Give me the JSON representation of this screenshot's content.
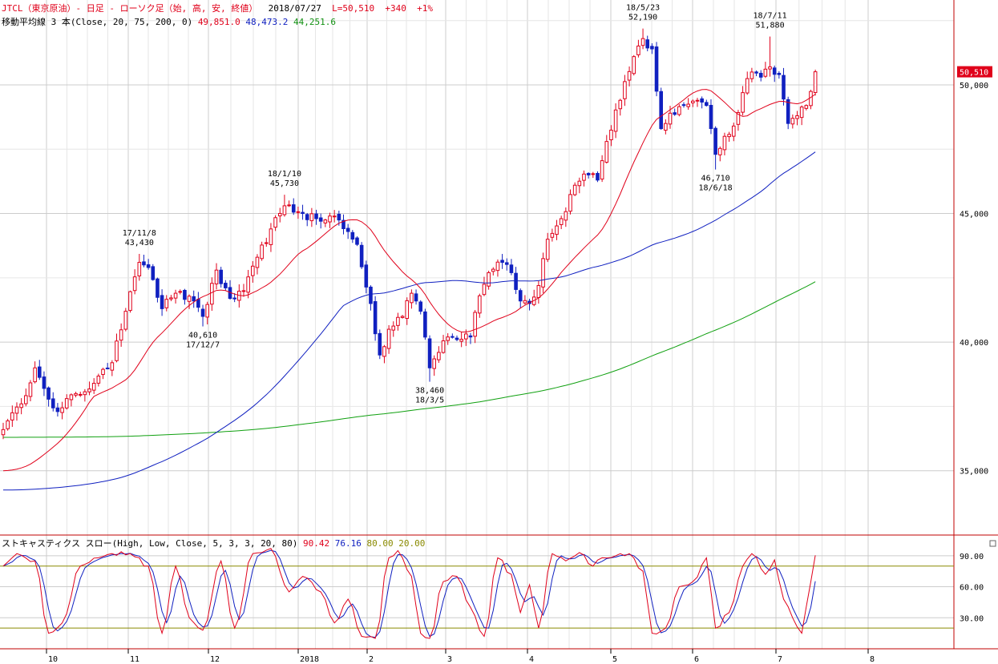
{
  "header": {
    "symbol": "JTCL（東京原油）",
    "timeframe": "- 日足 - ローソク足（始, 高, 安, 終値）",
    "date": "2018/07/27",
    "last": "L=50,510",
    "change": "+340",
    "change_pct": "+1%",
    "ma_label": "移動平均線 3 本(Close, 20, 75, 200, 0)",
    "ma20": "49,851.0",
    "ma75": "48,473.2",
    "ma200": "44,251.6",
    "stoch_label": "ストキャスティクス スロー(High, Low, Close, 5, 3, 3, 20, 80)",
    "stoch_k": "90.42",
    "stoch_d": "76.16",
    "stoch_hi": "80.00",
    "stoch_lo": "20.00"
  },
  "colors": {
    "up": "#e0001a",
    "down": "#1020c0",
    "ma20": "#e0001a",
    "ma75": "#1020c0",
    "ma200": "#10a010",
    "stoch_k": "#e0001a",
    "stoch_d": "#1020c0",
    "levels": "#8a8a00",
    "grid": "#cccccc",
    "price_tag_bg": "#e0001a"
  },
  "price_tag": "50,510",
  "chart_data": [
    {
      "type": "candlestick",
      "ylim": [
        32500,
        53300
      ],
      "y_ticks": [
        35000,
        40000,
        45000,
        50000
      ],
      "y_tick_labels": [
        "35,000",
        "40,000",
        "45,000",
        "50,000"
      ],
      "x_labels": [
        "10",
        "11",
        "12",
        "2018",
        "2",
        "3",
        "4",
        "5",
        "6",
        "7",
        "8"
      ],
      "grid": true,
      "legend": "top-left",
      "anchors": [
        {
          "d": 0,
          "v": 36600
        },
        {
          "d": 4,
          "v": 37600
        },
        {
          "d": 7,
          "v": 39000
        },
        {
          "d": 9,
          "v": 38200
        },
        {
          "d": 12,
          "v": 37300
        },
        {
          "d": 16,
          "v": 38000
        },
        {
          "d": 20,
          "v": 38400
        },
        {
          "d": 24,
          "v": 39200
        },
        {
          "d": 27,
          "v": 41200
        },
        {
          "d": 30,
          "v": 43100
        },
        {
          "d": 32,
          "v": 42900
        },
        {
          "d": 35,
          "v": 41300
        },
        {
          "d": 38,
          "v": 41900
        },
        {
          "d": 42,
          "v": 41600
        },
        {
          "d": 44,
          "v": 41000
        },
        {
          "d": 47,
          "v": 42800
        },
        {
          "d": 50,
          "v": 41700
        },
        {
          "d": 53,
          "v": 42000
        },
        {
          "d": 56,
          "v": 43300
        },
        {
          "d": 59,
          "v": 44400
        },
        {
          "d": 62,
          "v": 45300
        },
        {
          "d": 66,
          "v": 45000
        },
        {
          "d": 70,
          "v": 44700
        },
        {
          "d": 73,
          "v": 44900
        },
        {
          "d": 76,
          "v": 44300
        },
        {
          "d": 78,
          "v": 43800
        },
        {
          "d": 81,
          "v": 41500
        },
        {
          "d": 83,
          "v": 39500
        },
        {
          "d": 85,
          "v": 40500
        },
        {
          "d": 88,
          "v": 41000
        },
        {
          "d": 90,
          "v": 41900
        },
        {
          "d": 92,
          "v": 41200
        },
        {
          "d": 94,
          "v": 39000
        },
        {
          "d": 96,
          "v": 39600
        },
        {
          "d": 98,
          "v": 40200
        },
        {
          "d": 100,
          "v": 40100
        },
        {
          "d": 103,
          "v": 40200
        },
        {
          "d": 105,
          "v": 41800
        },
        {
          "d": 107,
          "v": 42700
        },
        {
          "d": 110,
          "v": 43100
        },
        {
          "d": 112,
          "v": 42700
        },
        {
          "d": 114,
          "v": 41600
        },
        {
          "d": 116,
          "v": 41500
        },
        {
          "d": 118,
          "v": 42200
        },
        {
          "d": 120,
          "v": 44000
        },
        {
          "d": 123,
          "v": 44800
        },
        {
          "d": 126,
          "v": 46100
        },
        {
          "d": 129,
          "v": 46500
        },
        {
          "d": 131,
          "v": 46300
        },
        {
          "d": 133,
          "v": 47800
        },
        {
          "d": 136,
          "v": 49400
        },
        {
          "d": 139,
          "v": 51100
        },
        {
          "d": 141,
          "v": 51800
        },
        {
          "d": 143,
          "v": 51400
        },
        {
          "d": 145,
          "v": 48300
        },
        {
          "d": 147,
          "v": 48900
        },
        {
          "d": 150,
          "v": 49200
        },
        {
          "d": 153,
          "v": 49400
        },
        {
          "d": 155,
          "v": 49200
        },
        {
          "d": 157,
          "v": 47300
        },
        {
          "d": 159,
          "v": 48000
        },
        {
          "d": 161,
          "v": 48400
        },
        {
          "d": 163,
          "v": 49700
        },
        {
          "d": 165,
          "v": 50500
        },
        {
          "d": 167,
          "v": 50300
        },
        {
          "d": 169,
          "v": 50700
        },
        {
          "d": 171,
          "v": 50400
        },
        {
          "d": 173,
          "v": 48500
        },
        {
          "d": 175,
          "v": 48800
        },
        {
          "d": 177,
          "v": 49200
        },
        {
          "d": 179,
          "v": 50510
        }
      ],
      "annotations": [
        {
          "date": "17/11/8",
          "value": "43,430",
          "d": 30,
          "price": 43430,
          "pos": "above"
        },
        {
          "date": "17/12/7",
          "value": "40,610",
          "d": 44,
          "price": 40610,
          "pos": "below"
        },
        {
          "date": "18/1/10",
          "value": "45,730",
          "d": 62,
          "price": 45730,
          "pos": "above"
        },
        {
          "date": "18/3/5",
          "value": "38,460",
          "d": 94,
          "price": 38460,
          "pos": "below"
        },
        {
          "date": "18/5/23",
          "value": "52,190",
          "d": 141,
          "price": 52190,
          "pos": "above"
        },
        {
          "date": "18/6/18",
          "value": "46,710",
          "d": 157,
          "price": 46710,
          "pos": "below"
        },
        {
          "date": "18/7/11",
          "value": "51,880",
          "d": 169,
          "price": 51880,
          "pos": "above"
        }
      ],
      "ma_start": {
        "ma20": 35000,
        "ma75": 34250,
        "ma200": 36300
      }
    },
    {
      "type": "line",
      "name": "stochastic",
      "ylim": [
        0,
        110
      ],
      "y_ticks": [
        30,
        60,
        90
      ],
      "y_tick_labels": [
        "30.00",
        "60.00",
        "90.00"
      ],
      "levels": [
        20,
        80
      ],
      "k_anchors": [
        {
          "d": 0,
          "v": 80
        },
        {
          "d": 3,
          "v": 92
        },
        {
          "d": 7,
          "v": 85
        },
        {
          "d": 10,
          "v": 15
        },
        {
          "d": 13,
          "v": 25
        },
        {
          "d": 17,
          "v": 80
        },
        {
          "d": 21,
          "v": 88
        },
        {
          "d": 24,
          "v": 92
        },
        {
          "d": 28,
          "v": 92
        },
        {
          "d": 32,
          "v": 80
        },
        {
          "d": 35,
          "v": 15
        },
        {
          "d": 38,
          "v": 80
        },
        {
          "d": 41,
          "v": 30
        },
        {
          "d": 44,
          "v": 18
        },
        {
          "d": 48,
          "v": 85
        },
        {
          "d": 51,
          "v": 20
        },
        {
          "d": 55,
          "v": 92
        },
        {
          "d": 59,
          "v": 97
        },
        {
          "d": 63,
          "v": 55
        },
        {
          "d": 66,
          "v": 70
        },
        {
          "d": 70,
          "v": 55
        },
        {
          "d": 73,
          "v": 25
        },
        {
          "d": 76,
          "v": 48
        },
        {
          "d": 79,
          "v": 12
        },
        {
          "d": 82,
          "v": 10
        },
        {
          "d": 85,
          "v": 88
        },
        {
          "d": 87,
          "v": 95
        },
        {
          "d": 90,
          "v": 70
        },
        {
          "d": 92,
          "v": 15
        },
        {
          "d": 94,
          "v": 10
        },
        {
          "d": 97,
          "v": 65
        },
        {
          "d": 100,
          "v": 70
        },
        {
          "d": 103,
          "v": 40
        },
        {
          "d": 106,
          "v": 12
        },
        {
          "d": 109,
          "v": 88
        },
        {
          "d": 112,
          "v": 72
        },
        {
          "d": 114,
          "v": 35
        },
        {
          "d": 116,
          "v": 62
        },
        {
          "d": 118,
          "v": 20
        },
        {
          "d": 121,
          "v": 92
        },
        {
          "d": 124,
          "v": 85
        },
        {
          "d": 127,
          "v": 93
        },
        {
          "d": 130,
          "v": 80
        },
        {
          "d": 132,
          "v": 88
        },
        {
          "d": 135,
          "v": 90
        },
        {
          "d": 138,
          "v": 92
        },
        {
          "d": 141,
          "v": 75
        },
        {
          "d": 143,
          "v": 15
        },
        {
          "d": 146,
          "v": 20
        },
        {
          "d": 149,
          "v": 60
        },
        {
          "d": 152,
          "v": 65
        },
        {
          "d": 155,
          "v": 88
        },
        {
          "d": 157,
          "v": 20
        },
        {
          "d": 160,
          "v": 35
        },
        {
          "d": 163,
          "v": 80
        },
        {
          "d": 165,
          "v": 92
        },
        {
          "d": 168,
          "v": 72
        },
        {
          "d": 170,
          "v": 86
        },
        {
          "d": 172,
          "v": 48
        },
        {
          "d": 174,
          "v": 30
        },
        {
          "d": 176,
          "v": 15
        },
        {
          "d": 178,
          "v": 65
        },
        {
          "d": 179,
          "v": 90.42
        }
      ],
      "d_smoothing": 3
    }
  ]
}
